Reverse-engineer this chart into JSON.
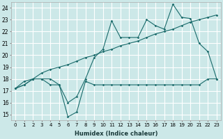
{
  "xlabel": "Humidex (Indice chaleur)",
  "bg_color": "#cce8e8",
  "grid_color": "#ffffff",
  "line_color": "#1a6b6b",
  "xlim": [
    -0.5,
    23.5
  ],
  "ylim": [
    14.5,
    24.5
  ],
  "xticks": [
    0,
    1,
    2,
    3,
    4,
    5,
    6,
    7,
    8,
    9,
    10,
    11,
    12,
    13,
    14,
    15,
    16,
    17,
    18,
    19,
    20,
    21,
    22,
    23
  ],
  "yticks": [
    15,
    16,
    17,
    18,
    19,
    20,
    21,
    22,
    23,
    24
  ],
  "series1_x": [
    0,
    1,
    2,
    3,
    4,
    5,
    6,
    7,
    8,
    9,
    10,
    11,
    12,
    13,
    14,
    15,
    16,
    17,
    18,
    19,
    20,
    21,
    22,
    23
  ],
  "series1_y": [
    17.2,
    17.5,
    18.0,
    18.0,
    17.5,
    17.5,
    14.8,
    15.2,
    17.8,
    17.5,
    17.5,
    17.5,
    17.5,
    17.5,
    17.5,
    17.5,
    17.5,
    17.5,
    17.5,
    17.5,
    17.5,
    17.5,
    18.0,
    18.0
  ],
  "series2_x": [
    0,
    1,
    2,
    3,
    4,
    5,
    6,
    7,
    8,
    9,
    10,
    11,
    12,
    13,
    14,
    15,
    16,
    17,
    18,
    19,
    20,
    21,
    22,
    23
  ],
  "series2_y": [
    17.2,
    17.5,
    18.0,
    18.0,
    18.0,
    17.5,
    16.0,
    16.5,
    18.0,
    19.8,
    20.5,
    22.9,
    21.5,
    21.5,
    21.5,
    23.0,
    22.5,
    22.2,
    24.3,
    23.2,
    23.1,
    21.0,
    20.3,
    18.0
  ],
  "series3_x": [
    0,
    1,
    2,
    3,
    4,
    5,
    6,
    7,
    8,
    9,
    10,
    11,
    12,
    13,
    14,
    15,
    16,
    17,
    18,
    19,
    20,
    21,
    22,
    23
  ],
  "series3_y": [
    17.2,
    17.8,
    18.0,
    18.5,
    18.8,
    19.0,
    19.2,
    19.5,
    19.8,
    20.0,
    20.3,
    20.5,
    20.8,
    21.0,
    21.2,
    21.5,
    21.8,
    22.0,
    22.2,
    22.5,
    22.8,
    23.0,
    23.2,
    23.4
  ]
}
